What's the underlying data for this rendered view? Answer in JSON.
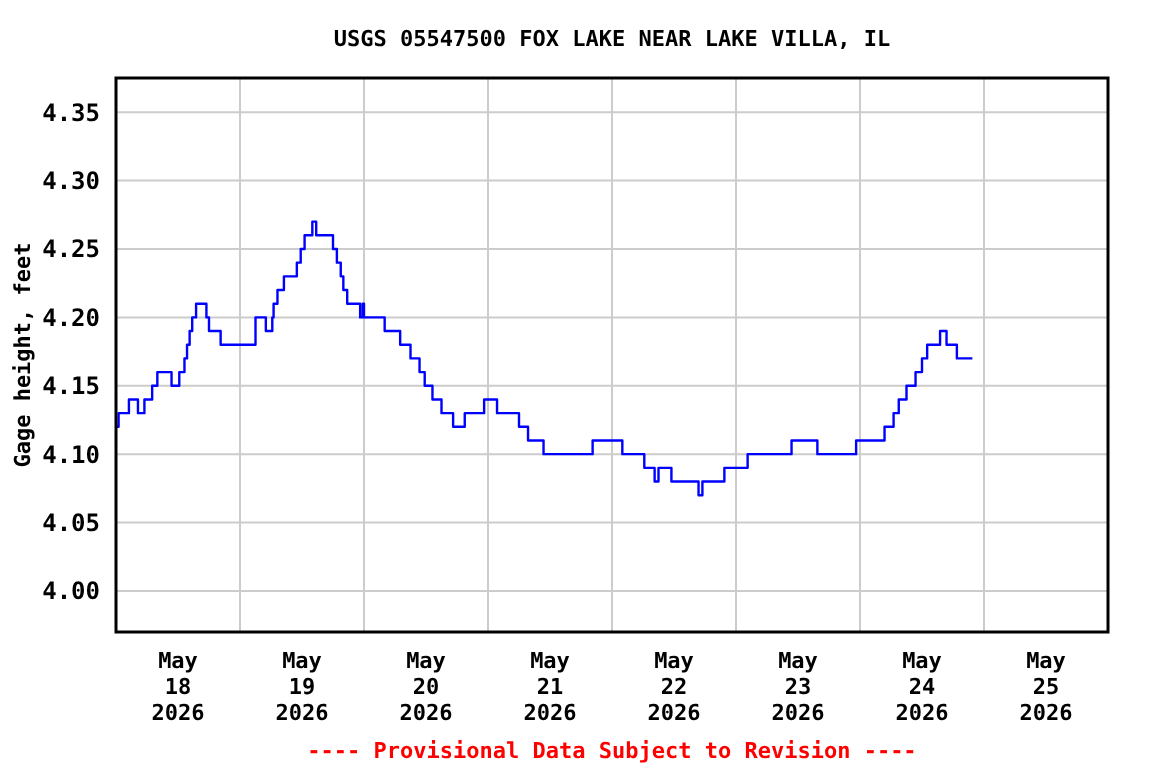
{
  "chart_data": {
    "type": "step",
    "title": "USGS 05547500 FOX LAKE NEAR LAKE VILLA, IL",
    "ylabel": "Gage height, feet",
    "annotations": [
      "---- Provisional Data Subject to Revision ----"
    ],
    "xlim": [
      "2026-05-18T00:00",
      "2026-05-26T00:00"
    ],
    "xticks": [
      {
        "value": "2026-05-18T12:00",
        "label": "May\n18\n2026"
      },
      {
        "value": "2026-05-19T00:00",
        "label": null
      },
      {
        "value": "2026-05-19T12:00",
        "label": "May\n19\n2026"
      },
      {
        "value": "2026-05-20T00:00",
        "label": null
      },
      {
        "value": "2026-05-20T12:00",
        "label": "May\n20\n2026"
      },
      {
        "value": "2026-05-21T00:00",
        "label": null
      },
      {
        "value": "2026-05-21T12:00",
        "label": "May\n21\n2026"
      },
      {
        "value": "2026-05-22T00:00",
        "label": null
      },
      {
        "value": "2026-05-22T12:00",
        "label": "May\n22\n2026"
      },
      {
        "value": "2026-05-23T00:00",
        "label": null
      },
      {
        "value": "2026-05-23T12:00",
        "label": "May\n23\n2026"
      },
      {
        "value": "2026-05-24T00:00",
        "label": null
      },
      {
        "value": "2026-05-24T12:00",
        "label": "May\n24\n2026"
      },
      {
        "value": "2026-05-25T00:00",
        "label": null
      },
      {
        "value": "2026-05-25T12:00",
        "label": "May\n25\n2026"
      }
    ],
    "ylim": [
      3.97,
      4.375
    ],
    "yticks": [
      {
        "value": 4.0,
        "label": "4.00"
      },
      {
        "value": 4.05,
        "label": "4.05"
      },
      {
        "value": 4.1,
        "label": "4.10"
      },
      {
        "value": 4.15,
        "label": "4.15"
      },
      {
        "value": 4.2,
        "label": "4.20"
      },
      {
        "value": 4.25,
        "label": "4.25"
      },
      {
        "value": 4.3,
        "label": "4.30"
      },
      {
        "value": 4.35,
        "label": "4.35"
      }
    ],
    "grid": true,
    "marker": "none",
    "line_style": "solid",
    "series": [
      {
        "color": "#0000ff",
        "x": [
          "2026-05-18T00:00",
          "2026-05-18T00:30",
          "2026-05-18T02:30",
          "2026-05-18T04:15",
          "2026-05-18T05:30",
          "2026-05-18T07:00",
          "2026-05-18T08:00",
          "2026-05-18T10:45",
          "2026-05-18T12:15",
          "2026-05-18T13:15",
          "2026-05-18T13:45",
          "2026-05-18T14:15",
          "2026-05-18T14:45",
          "2026-05-18T15:30",
          "2026-05-18T17:30",
          "2026-05-18T18:00",
          "2026-05-18T20:15",
          "2026-05-19T03:00",
          "2026-05-19T05:00",
          "2026-05-19T06:15",
          "2026-05-19T06:30",
          "2026-05-19T07:15",
          "2026-05-19T08:30",
          "2026-05-19T11:00",
          "2026-05-19T11:45",
          "2026-05-19T12:30",
          "2026-05-19T14:00",
          "2026-05-19T14:45",
          "2026-05-19T18:00",
          "2026-05-19T18:45",
          "2026-05-19T19:30",
          "2026-05-19T20:00",
          "2026-05-19T20:45",
          "2026-05-19T23:15",
          "2026-05-19T23:45",
          "2026-05-20T00:00",
          "2026-05-20T04:00",
          "2026-05-20T07:00",
          "2026-05-20T09:00",
          "2026-05-20T10:45",
          "2026-05-20T11:45",
          "2026-05-20T13:15",
          "2026-05-20T15:00",
          "2026-05-20T17:15",
          "2026-05-20T19:30",
          "2026-05-20T23:15",
          "2026-05-21T01:45",
          "2026-05-21T06:00",
          "2026-05-21T07:45",
          "2026-05-21T10:45",
          "2026-05-21T20:15",
          "2026-05-22T02:00",
          "2026-05-22T06:15",
          "2026-05-22T08:15",
          "2026-05-22T09:00",
          "2026-05-22T11:30",
          "2026-05-22T16:45",
          "2026-05-22T17:30",
          "2026-05-22T21:45",
          "2026-05-23T02:15",
          "2026-05-23T10:45",
          "2026-05-23T15:45",
          "2026-05-23T23:15",
          "2026-05-24T04:45",
          "2026-05-24T06:30",
          "2026-05-24T07:30",
          "2026-05-24T09:00",
          "2026-05-24T10:45",
          "2026-05-24T12:00",
          "2026-05-24T13:00",
          "2026-05-24T15:30",
          "2026-05-24T16:45",
          "2026-05-24T18:45",
          "2026-05-24T21:45"
        ],
        "values": [
          4.12,
          4.13,
          4.14,
          4.13,
          4.14,
          4.15,
          4.16,
          4.15,
          4.16,
          4.17,
          4.18,
          4.19,
          4.2,
          4.21,
          4.2,
          4.19,
          4.18,
          4.2,
          4.19,
          4.2,
          4.21,
          4.22,
          4.23,
          4.24,
          4.25,
          4.26,
          4.27,
          4.26,
          4.25,
          4.24,
          4.23,
          4.22,
          4.21,
          4.2,
          4.21,
          4.2,
          4.19,
          4.18,
          4.17,
          4.16,
          4.15,
          4.14,
          4.13,
          4.12,
          4.13,
          4.14,
          4.13,
          4.12,
          4.11,
          4.1,
          4.11,
          4.1,
          4.09,
          4.08,
          4.09,
          4.08,
          4.07,
          4.08,
          4.09,
          4.1,
          4.11,
          4.1,
          4.11,
          4.12,
          4.13,
          4.14,
          4.15,
          4.16,
          4.17,
          4.18,
          4.19,
          4.18,
          4.17,
          4.17
        ]
      }
    ]
  }
}
